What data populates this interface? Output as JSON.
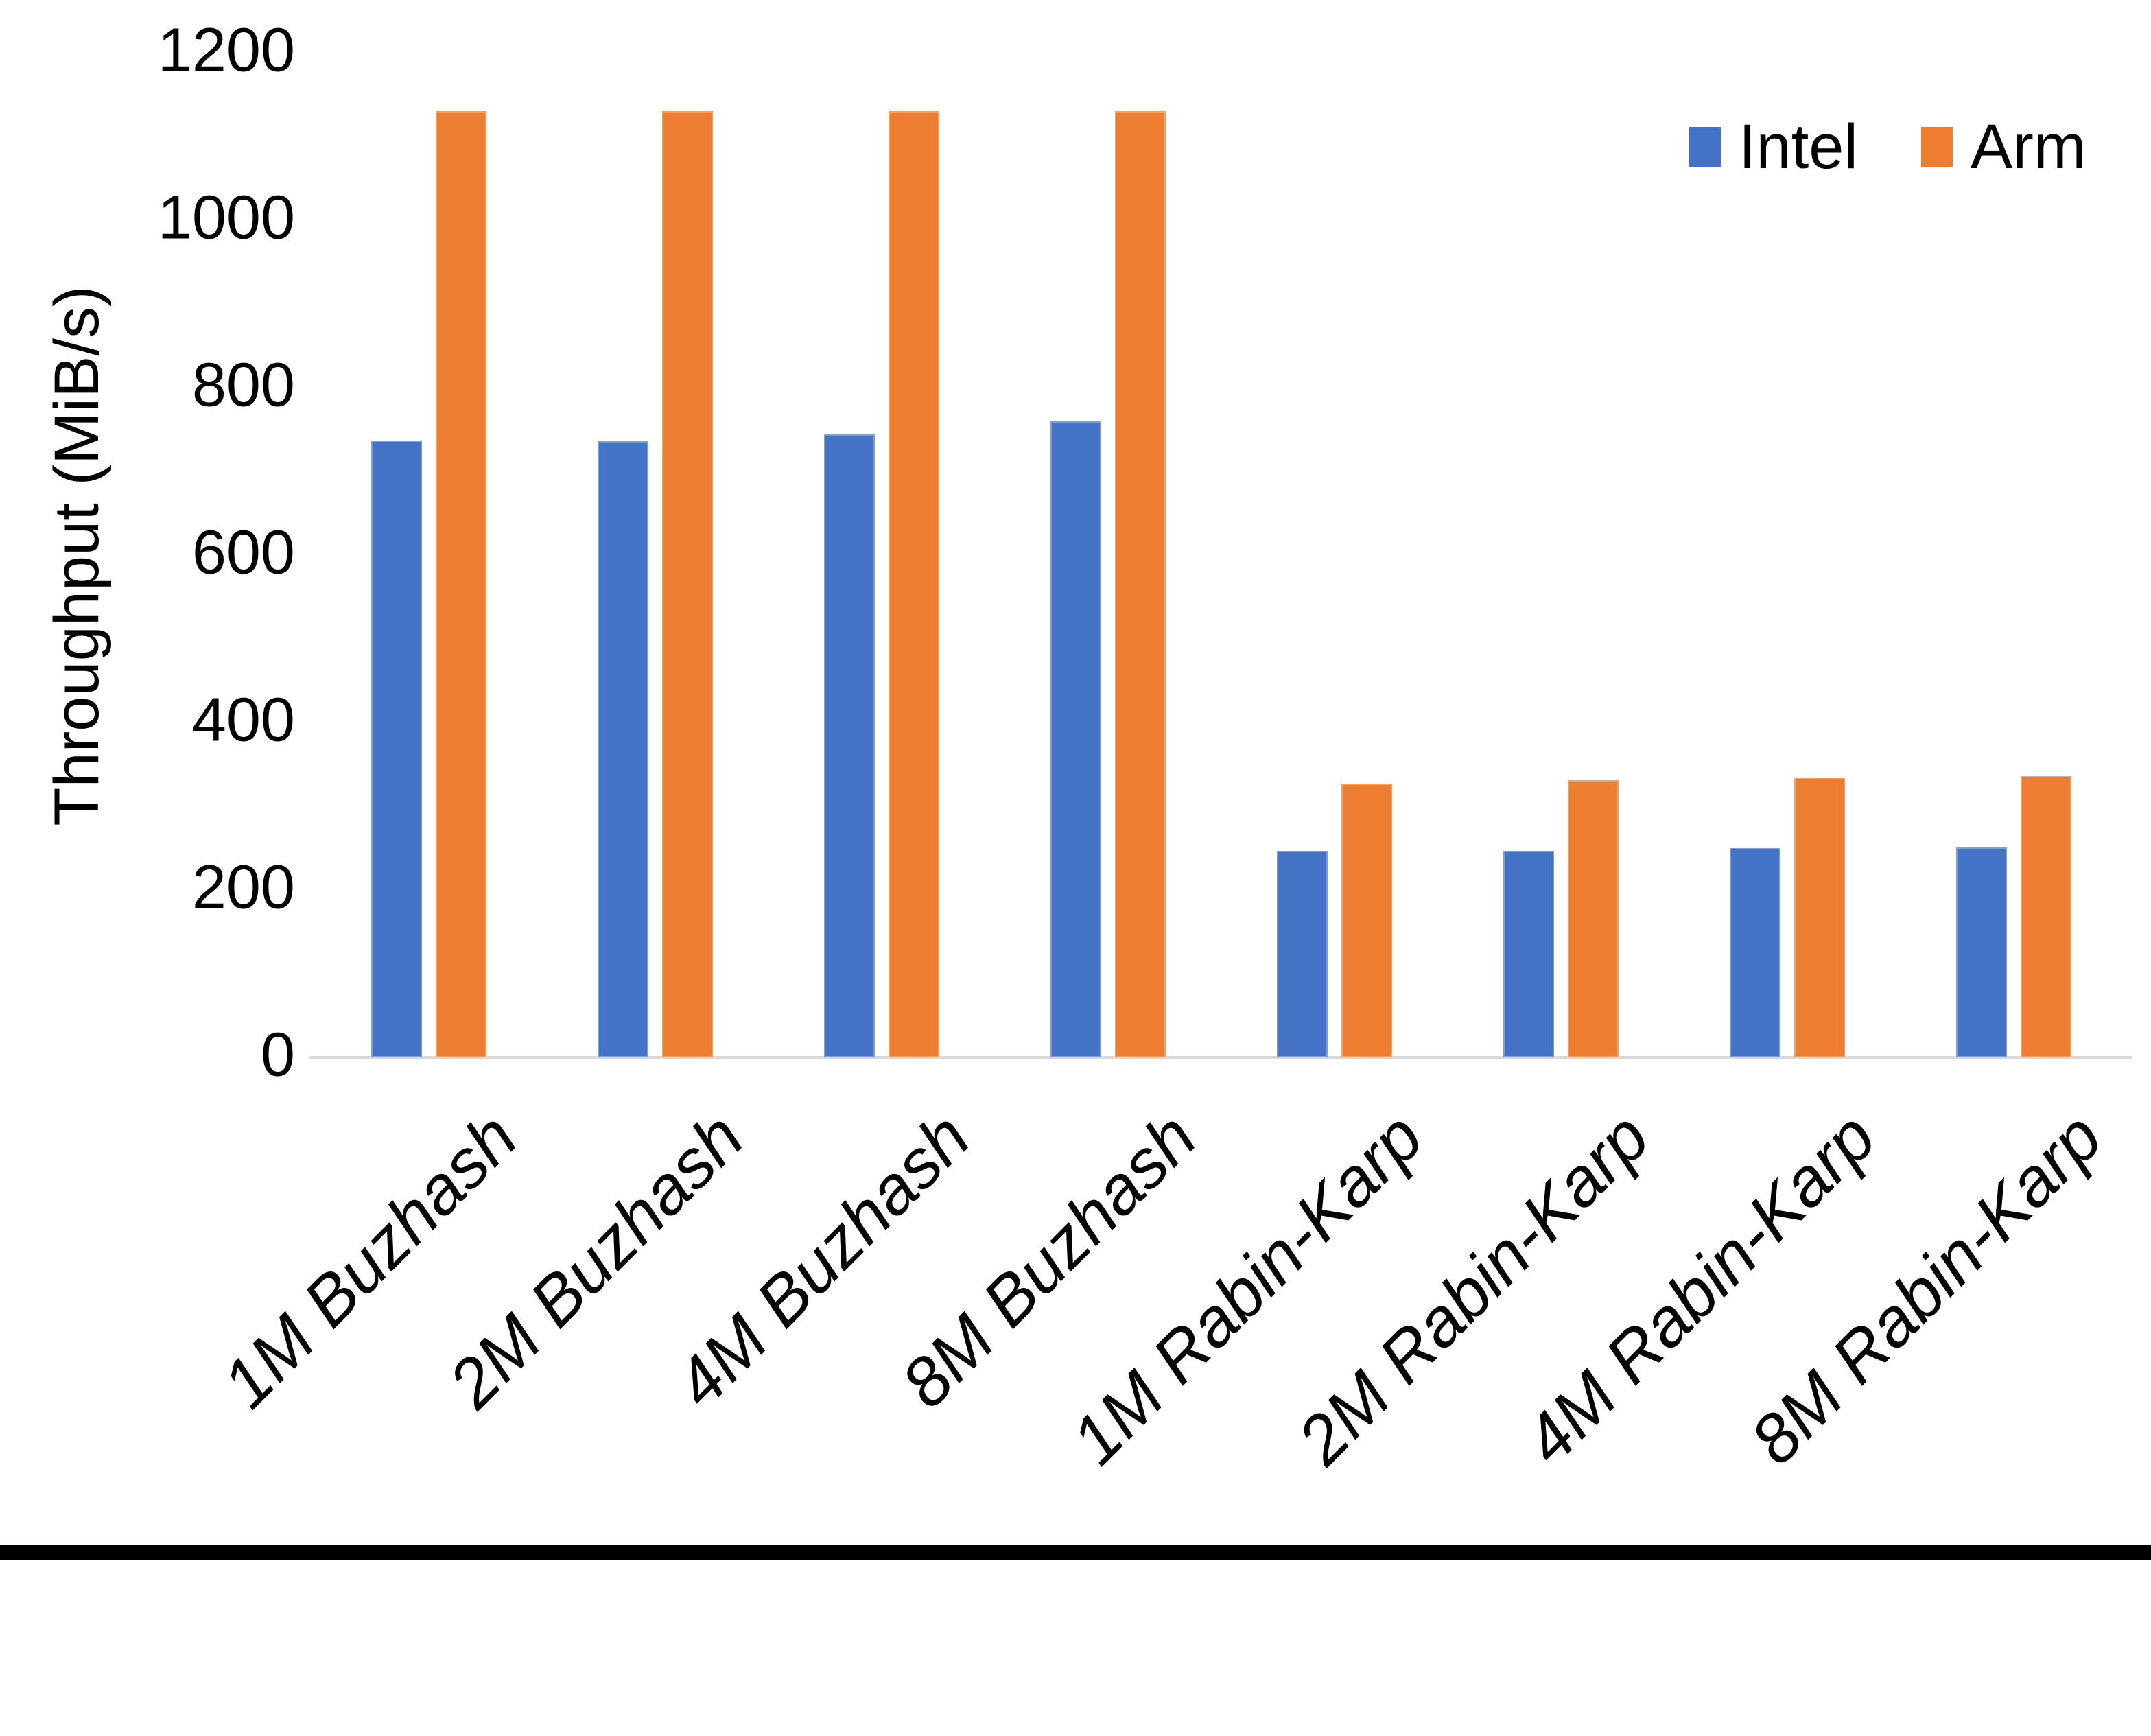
{
  "chart_data": {
    "type": "bar",
    "title": "",
    "xlabel": "",
    "ylabel": "Throughput (MiB/s)",
    "ylim": [
      0,
      1200
    ],
    "yticks": [
      0,
      200,
      400,
      600,
      800,
      1000,
      1200
    ],
    "grid": false,
    "legend_position": "top-right",
    "categories": [
      "1M Buzhash",
      "2M Buzhash",
      "4M Buzhash",
      "8M Buzhash",
      "1M Rabin-Karp",
      "2M Rabin-Karp",
      "4M Rabin-Karp",
      "8M Rabin-Karp"
    ],
    "series": [
      {
        "name": "Intel",
        "color": "#4472C4",
        "values": [
          737,
          736,
          744,
          760,
          247,
          247,
          250,
          251
        ]
      },
      {
        "name": "Arm",
        "color": "#ED7D31",
        "values": [
          1130,
          1130,
          1130,
          1130,
          327,
          331,
          334,
          336
        ]
      }
    ]
  },
  "colors": {
    "axis_line": "#D9D9D9",
    "text": "#000000",
    "background": "#FFFFFF",
    "bottom_border": "#000000"
  }
}
